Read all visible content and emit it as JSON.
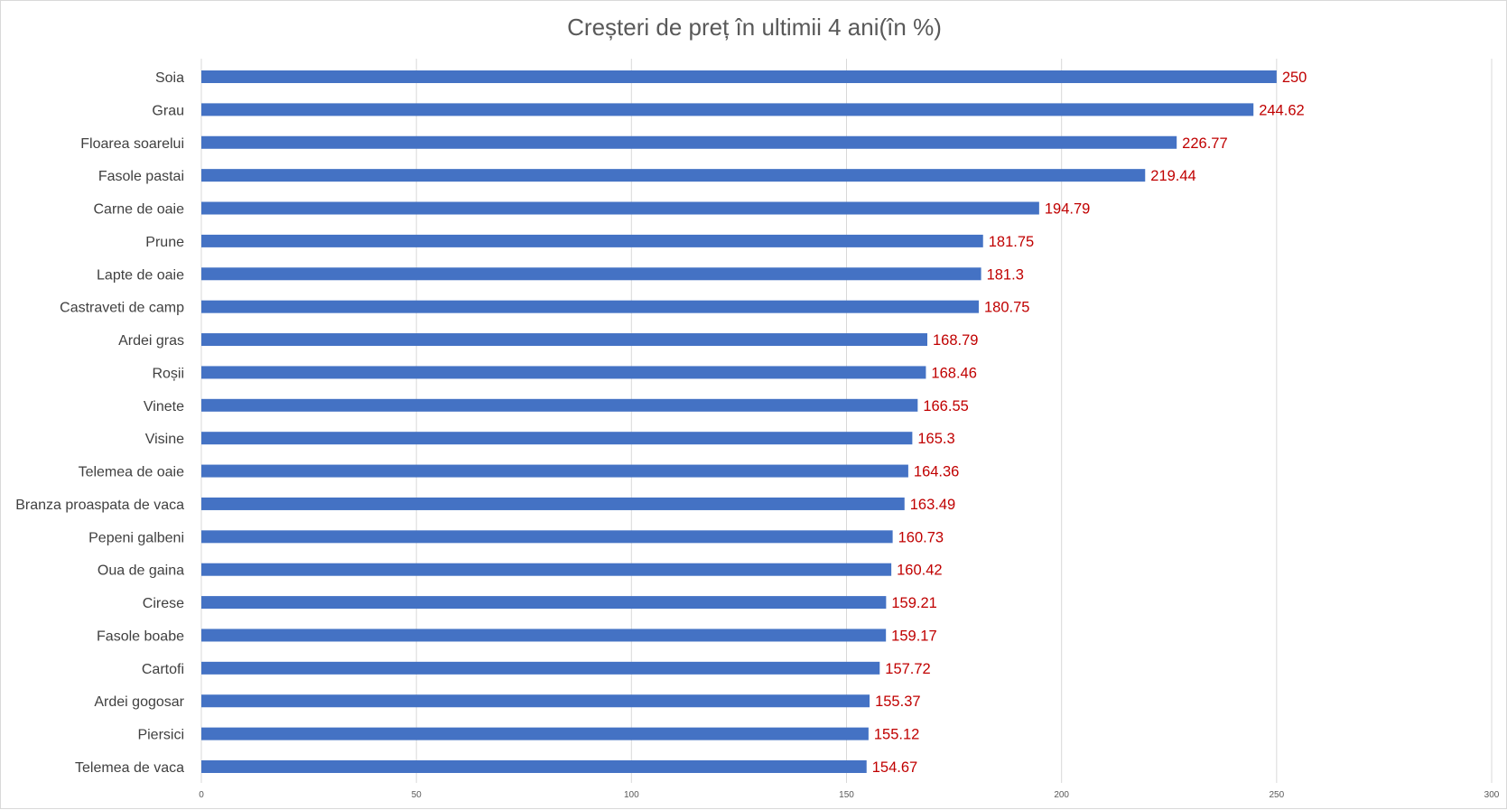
{
  "chart_data": {
    "type": "bar",
    "orientation": "horizontal",
    "title": "Creșteri de preț în ultimii 4 ani(în %)",
    "categories": [
      "Soia",
      "Grau",
      "Floarea soarelui",
      "Fasole pastai",
      "Carne de oaie",
      "Prune",
      "Lapte de oaie",
      "Castraveti de camp",
      "Ardei gras",
      "Roșii",
      "Vinete",
      "Visine",
      "Telemea de oaie",
      "Branza proaspata de vaca",
      "Pepeni galbeni",
      "Oua de gaina",
      "Cirese",
      "Fasole boabe",
      "Cartofi",
      "Ardei gogosar",
      "Piersici",
      "Telemea de vaca"
    ],
    "values": [
      250,
      244.62,
      226.77,
      219.44,
      194.79,
      181.75,
      181.3,
      180.75,
      168.79,
      168.46,
      166.55,
      165.3,
      164.36,
      163.49,
      160.73,
      160.42,
      159.21,
      159.17,
      157.72,
      155.37,
      155.12,
      154.67
    ],
    "data_labels": [
      "250",
      "244.62",
      "226.77",
      "219.44",
      "194.79",
      "181.75",
      "181.3",
      "180.75",
      "168.79",
      "168.46",
      "166.55",
      "165.3",
      "164.36",
      "163.49",
      "160.73",
      "160.42",
      "159.21",
      "159.17",
      "157.72",
      "155.37",
      "155.12",
      "154.67"
    ],
    "x_ticks": [
      "0",
      "50",
      "100",
      "150",
      "200",
      "250",
      "300"
    ],
    "xlim": [
      0,
      300
    ],
    "xlabel": "",
    "ylabel": "",
    "grid": "vertical",
    "legend": "none",
    "colors": {
      "bar": "#4472c4",
      "data_label": "#c00000",
      "gridline": "#d9d9d9",
      "category_text": "#404040",
      "tick_text": "#595959",
      "title_text": "#595959"
    }
  }
}
